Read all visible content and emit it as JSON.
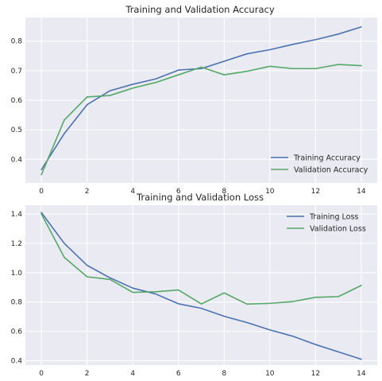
{
  "chart_data": [
    {
      "type": "line",
      "title": "Training and Validation Accuracy",
      "xlabel": "",
      "ylabel": "",
      "x": [
        0,
        1,
        2,
        3,
        4,
        5,
        6,
        7,
        8,
        9,
        10,
        11,
        12,
        13,
        14
      ],
      "xlim": [
        -0.7,
        14.7
      ],
      "ylim": [
        0.32,
        0.88
      ],
      "xticks": [
        0,
        2,
        4,
        6,
        8,
        10,
        12,
        14
      ],
      "yticks": [
        0.4,
        0.5,
        0.6,
        0.7,
        0.8
      ],
      "xtick_labels": [
        "0",
        "2",
        "4",
        "6",
        "8",
        "10",
        "12",
        "14"
      ],
      "ytick_labels": [
        "0.4",
        "0.5",
        "0.6",
        "0.7",
        "0.8"
      ],
      "grid": true,
      "legend_position": "lower-right",
      "series": [
        {
          "name": "Training Accuracy",
          "color": "#4c72b0",
          "values": [
            0.365,
            0.487,
            0.585,
            0.632,
            0.654,
            0.672,
            0.702,
            0.707,
            0.732,
            0.757,
            0.771,
            0.789,
            0.805,
            0.824,
            0.848
          ]
        },
        {
          "name": "Validation Accuracy",
          "color": "#55a868",
          "values": [
            0.348,
            0.533,
            0.611,
            0.616,
            0.641,
            0.66,
            0.686,
            0.712,
            0.686,
            0.698,
            0.715,
            0.707,
            0.707,
            0.721,
            0.717
          ]
        }
      ]
    },
    {
      "type": "line",
      "title": "Training and Validation Loss",
      "xlabel": "",
      "ylabel": "",
      "x": [
        0,
        1,
        2,
        3,
        4,
        5,
        6,
        7,
        8,
        9,
        10,
        11,
        12,
        13,
        14
      ],
      "xlim": [
        -0.7,
        14.7
      ],
      "ylim": [
        0.37,
        1.46
      ],
      "xticks": [
        0,
        2,
        4,
        6,
        8,
        10,
        12,
        14
      ],
      "yticks": [
        0.4,
        0.6,
        0.8,
        1.0,
        1.2,
        1.4
      ],
      "xtick_labels": [
        "0",
        "2",
        "4",
        "6",
        "8",
        "10",
        "12",
        "14"
      ],
      "ytick_labels": [
        "0.4",
        "0.6",
        "0.8",
        "1.0",
        "1.2",
        "1.4"
      ],
      "grid": true,
      "legend_position": "upper-right",
      "series": [
        {
          "name": "Training Loss",
          "color": "#4c72b0",
          "values": [
            1.41,
            1.2,
            1.05,
            0.965,
            0.895,
            0.855,
            0.788,
            0.757,
            0.703,
            0.66,
            0.61,
            0.567,
            0.51,
            0.46,
            0.41
          ]
        },
        {
          "name": "Validation Loss",
          "color": "#55a868",
          "values": [
            1.4,
            1.105,
            0.972,
            0.954,
            0.866,
            0.87,
            0.882,
            0.787,
            0.862,
            0.786,
            0.791,
            0.803,
            0.832,
            0.837,
            0.913
          ]
        }
      ]
    }
  ]
}
